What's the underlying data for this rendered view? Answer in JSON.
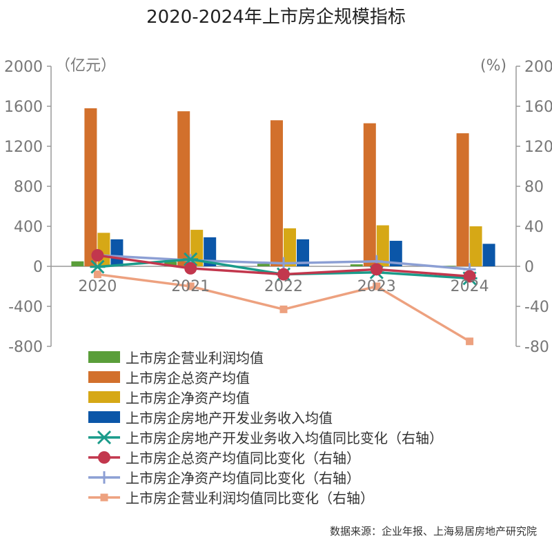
{
  "chart_data": {
    "type": "bar",
    "title": "2020-2024年上市房企规模指标",
    "categories": [
      "2020",
      "2021",
      "2022",
      "2023",
      "2024"
    ],
    "left_axis": {
      "unit": "（亿元）",
      "ylim": [
        -800,
        2000
      ],
      "ticks": [
        "2000",
        "1600",
        "1200",
        "800",
        "400",
        "0",
        "-400",
        "-800"
      ]
    },
    "right_axis": {
      "unit": "(%)",
      "ylim": [
        -80,
        200
      ],
      "ticks": [
        "200",
        "160",
        "120",
        "80",
        "40",
        "0",
        "-40",
        "-80"
      ]
    },
    "bar_series": [
      {
        "name": "上市房企营业利润均值",
        "color": "#5a9e3a",
        "values": [
          50,
          45,
          25,
          20,
          5
        ]
      },
      {
        "name": "上市房企总资产均值",
        "color": "#d2702c",
        "values": [
          1580,
          1550,
          1460,
          1430,
          1330
        ]
      },
      {
        "name": "上市房企净资产均值",
        "color": "#d6a816",
        "values": [
          335,
          365,
          380,
          410,
          400
        ]
      },
      {
        "name": "上市房企房地产开发业务收入均值",
        "color": "#0b56a8",
        "values": [
          270,
          290,
          270,
          255,
          225
        ]
      }
    ],
    "line_series": [
      {
        "name": "上市房企房地产开发业务收入均值同比变化（右轴）",
        "color": "#1a9b8a",
        "marker": "asterisk",
        "values": [
          -0.5,
          7,
          -8,
          -6,
          -12
        ]
      },
      {
        "name": "上市房企总资产均值同比变化（右轴）",
        "color": "#c2374d",
        "marker": "circle",
        "values": [
          11,
          -2,
          -8,
          -3,
          -10
        ]
      },
      {
        "name": "上市房企净资产均值同比变化（右轴）",
        "color": "#8c9fd4",
        "marker": "plus",
        "values": [
          11,
          6,
          3,
          5,
          -3
        ]
      },
      {
        "name": "上市房企营业利润均值同比变化（右轴）",
        "color": "#eda17f",
        "marker": "square",
        "values": [
          -8,
          -20,
          -43,
          -20,
          -75
        ]
      }
    ]
  },
  "source": "数据来源：企业年报、上海易居房地产研究院"
}
